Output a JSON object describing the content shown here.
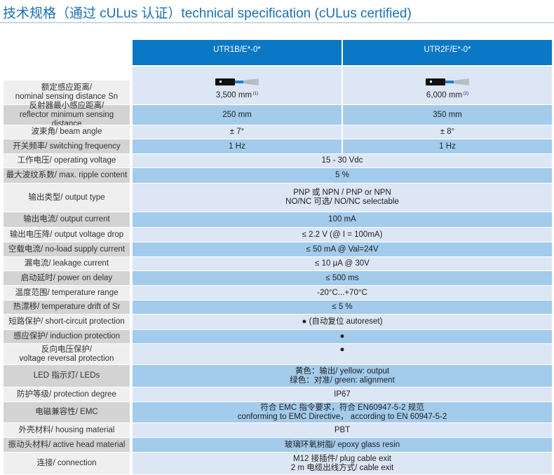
{
  "title": "技术规格（通过 cULus 认证）technical specification (cULus certified)",
  "columns": [
    "UTR1B/E*-0*",
    "UTR2F/E*-0*"
  ],
  "icons": {
    "sensor": "ultrasonic-sensor-beam-icon"
  },
  "colors": {
    "header": "#0a78c4",
    "row_light": "#dce6f5",
    "row_dark": "#a2cbec",
    "label_light": "#efefef",
    "label_dark": "#d3d3d3",
    "title": "#1a6fb8"
  },
  "rows": [
    {
      "label": [
        "额定感应距离/",
        "nominal sensing distance  Sn"
      ],
      "values": [
        [
          "3,500 mm"
        ],
        [
          "6,000 mm"
        ]
      ],
      "notes": [
        "(1)",
        "(2)"
      ],
      "icon": true
    },
    {
      "label": [
        "反射器最小感应距离/",
        "reflector minimum sensing distance"
      ],
      "values": [
        [
          "250 mm"
        ],
        [
          "350 mm"
        ]
      ]
    },
    {
      "label": [
        "波束角/ beam angle"
      ],
      "values": [
        [
          "± 7°"
        ],
        [
          "± 8°"
        ]
      ]
    },
    {
      "label": [
        "开关频率/  switching frequency"
      ],
      "values": [
        [
          "1 Hz"
        ],
        [
          "1 Hz"
        ]
      ]
    },
    {
      "label": [
        "工作电压/  operating voltage"
      ],
      "value": [
        "15 - 30 Vdc"
      ]
    },
    {
      "label": [
        "最大波纹系数/  max. ripple content"
      ],
      "value": [
        "5 %"
      ]
    },
    {
      "label": [
        "输出类型/ output type"
      ],
      "value": [
        "PNP 或 NPN / PNP or NPN",
        "NO/NC 可选/ NO/NC selectable"
      ]
    },
    {
      "label": [
        "输出电流/ output current"
      ],
      "value": [
        "100 mA"
      ]
    },
    {
      "label": [
        "输出电压降/ output voltage drop"
      ],
      "value": [
        "≤ 2.2 V (@ I = 100mA)"
      ]
    },
    {
      "label": [
        "空载电流/  no-load supply current"
      ],
      "value": [
        "≤ 50 mA @ Val=24V"
      ]
    },
    {
      "label": [
        "漏电流/  leakage current"
      ],
      "value": [
        "≤ 10 µA @ 30V"
      ]
    },
    {
      "label": [
        "启动延时/ power on delay"
      ],
      "value": [
        "≤ 500 ms"
      ]
    },
    {
      "label": [
        "温度范围/  temperature range"
      ],
      "value": [
        "-20°C...+70°C"
      ]
    },
    {
      "label": [
        "热漂移/ temperature drift of Sr"
      ],
      "value": [
        "≤ 5 %"
      ]
    },
    {
      "label": [
        "短路保护/ short-circuit protection"
      ],
      "value": [
        "●  (自动复位 autoreset)"
      ]
    },
    {
      "label": [
        "感应保护/ induction protection"
      ],
      "value": [
        "●"
      ]
    },
    {
      "label": [
        "反向电压保护/",
        "voltage reversal protection"
      ],
      "value": [
        "●",
        ""
      ]
    },
    {
      "label": [
        "LED 指示灯/ LEDs"
      ],
      "value": [
        "黄色：输出/ yellow: output",
        "绿色：对准/  green: alignment"
      ]
    },
    {
      "label": [
        "防护等级/ protection degree"
      ],
      "value": [
        "IP67"
      ]
    },
    {
      "label": [
        "电磁兼容性/ EMC"
      ],
      "value": [
        "符合 EMC 指令要求，符合 EN60947-5-2 规范",
        "conforming to EMC Directive，  according to EN 60947-5-2"
      ]
    },
    {
      "label": [
        "外壳材料/ housing material"
      ],
      "value": [
        "PBT"
      ]
    },
    {
      "label": [
        "振动头材料/ active head material"
      ],
      "value": [
        "玻璃环氧树脂/ epoxy glass resin"
      ]
    },
    {
      "label": [
        "连接/ connection"
      ],
      "value": [
        "M12 接插件/ plug cable exit",
        "2 m 电缆出线方式/ cable exit"
      ]
    }
  ]
}
